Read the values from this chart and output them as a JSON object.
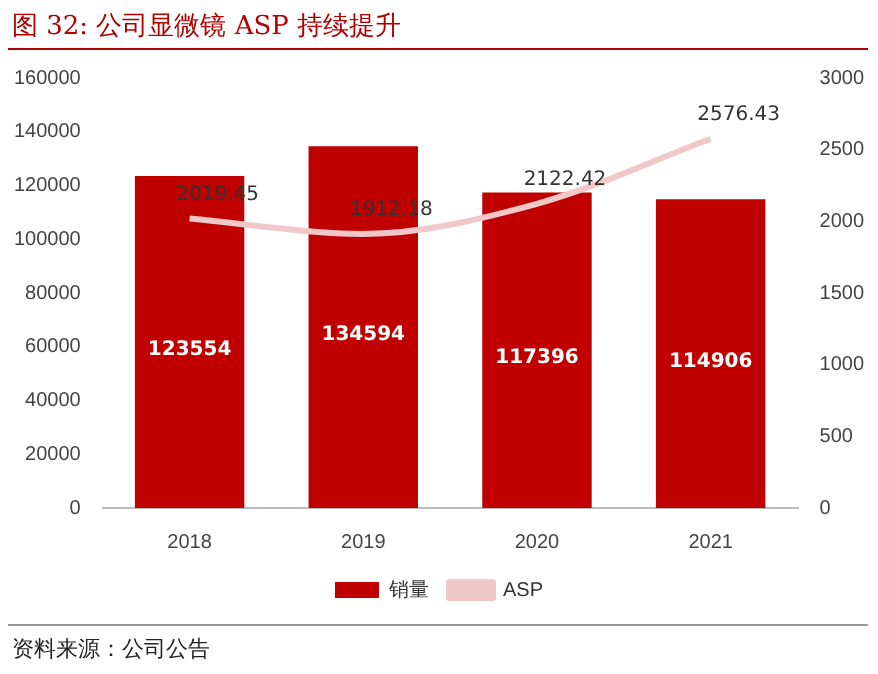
{
  "chart_data": {
    "type": "bar",
    "title": "图 32:  公司显微镜 ASP 持续提升",
    "categories": [
      "2018",
      "2019",
      "2020",
      "2021"
    ],
    "series": [
      {
        "name": "销量",
        "color": "#c00000",
        "values": [
          123554,
          134594,
          117396,
          114906
        ]
      },
      {
        "name": "ASP",
        "type": "line",
        "axis": "y2",
        "color": "#f0c8c8",
        "values": [
          2019.45,
          1912.18,
          2122.42,
          2576.43
        ]
      }
    ],
    "ylim": [
      0,
      160000
    ],
    "yticks": [
      0,
      20000,
      40000,
      60000,
      80000,
      100000,
      120000,
      140000,
      160000
    ],
    "y2lim": [
      0,
      3000
    ],
    "y2ticks": [
      0,
      500,
      1000,
      1500,
      2000,
      2500,
      3000
    ],
    "data_labels": true,
    "legend": "bottom",
    "marker": "none",
    "line_style": "solid",
    "grid": false,
    "annotations": [
      "资料来源：公司公告"
    ]
  }
}
